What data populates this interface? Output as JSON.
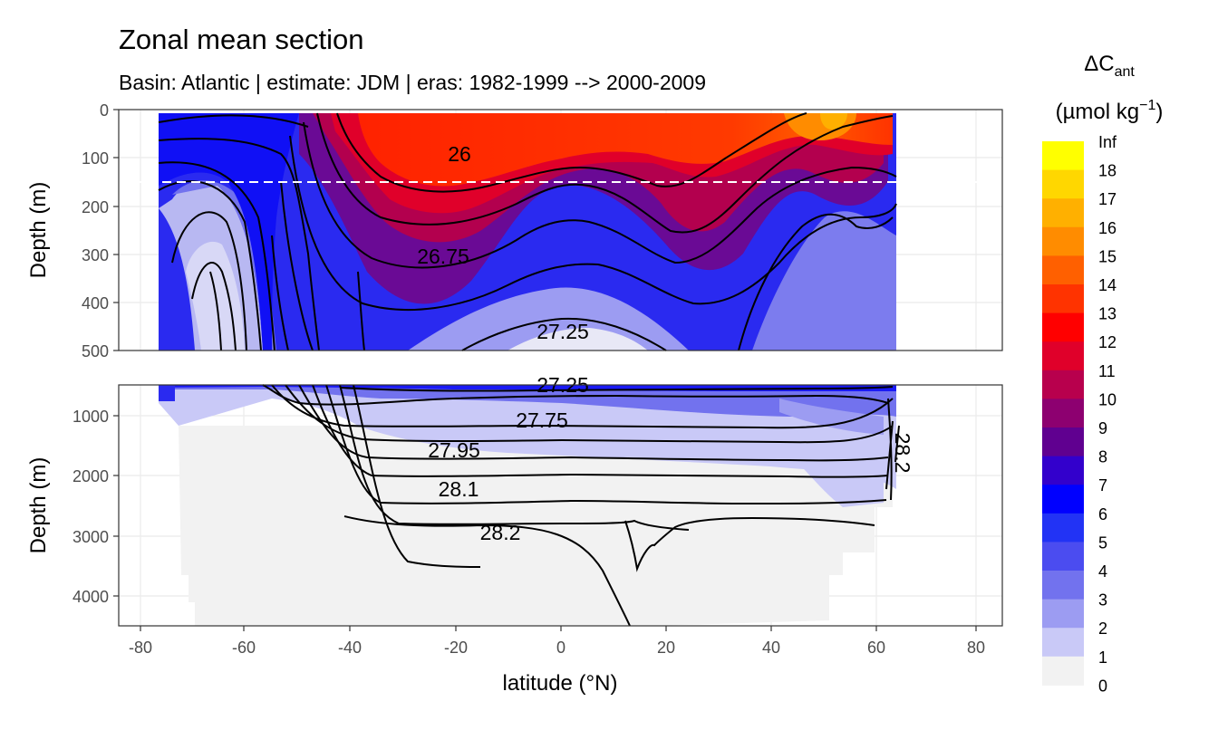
{
  "chart_data": {
    "type": "heatmap",
    "title": "Zonal mean section",
    "subtitle": "Basin: Atlantic | estimate: JDM  | eras: 1982-1999 --> 2000-2009",
    "xlabel": "latitude (°N)",
    "ylabel": "Depth (m)",
    "x_ticks": [
      "-80",
      "-60",
      "-40",
      "-20",
      "0",
      "20",
      "40",
      "60",
      "80"
    ],
    "xlim": [
      -85,
      85
    ],
    "panels": [
      {
        "name": "upper",
        "ylim": [
          0,
          500
        ],
        "y_ticks": [
          "0",
          "100",
          "200",
          "300",
          "400",
          "500"
        ],
        "reference_line_depth": 150
      },
      {
        "name": "lower",
        "ylim": [
          500,
          4500
        ],
        "y_ticks": [
          "1000",
          "2000",
          "3000",
          "4000"
        ]
      }
    ],
    "legend": {
      "title_main": "ΔC",
      "title_sub": "ant",
      "unit_prefix": "(µmol kg",
      "unit_exp": "−1",
      "unit_suffix": ")",
      "labels": [
        "Inf",
        "18",
        "17",
        "16",
        "15",
        "14",
        "13",
        "12",
        "11",
        "10",
        "9",
        "8",
        "7",
        "6",
        "5",
        "4",
        "3",
        "2",
        "1",
        "0"
      ],
      "colors": [
        "#ffff00",
        "#ffd700",
        "#ffb000",
        "#ff8c00",
        "#ff6000",
        "#ff3300",
        "#ff0000",
        "#e0002a",
        "#b8004d",
        "#8d0070",
        "#600090",
        "#3300cc",
        "#0000ff",
        "#2233f5",
        "#4b4cf0",
        "#7272ee",
        "#9c9cf2",
        "#c9c9f7",
        "#f2f2f2"
      ]
    },
    "contour_labels": [
      {
        "text": "26",
        "lat": -20,
        "depth": 85
      },
      {
        "text": "26.75",
        "lat": -20,
        "depth": 300
      },
      {
        "text": "27.25",
        "lat": 0,
        "depth": 460
      },
      {
        "text": "27.25",
        "lat": -4,
        "depth": 560
      },
      {
        "text": "27.75",
        "lat": -4,
        "depth": 1050
      },
      {
        "text": "27.95",
        "lat": -20,
        "depth": 1560
      },
      {
        "text": "28.1",
        "lat": -20,
        "depth": 2230
      },
      {
        "text": "28.2",
        "lat": -11,
        "depth": 2950
      },
      {
        "text": "28.2",
        "lat": 62,
        "depth": 1700
      }
    ]
  }
}
